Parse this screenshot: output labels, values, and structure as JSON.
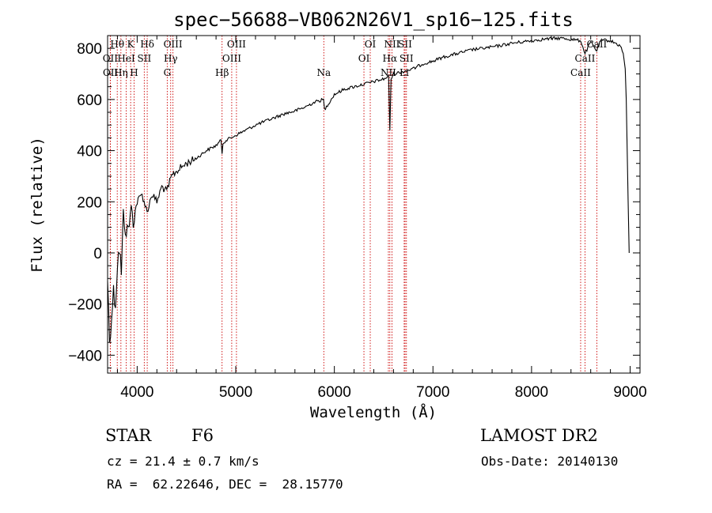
{
  "chart_data": {
    "type": "line",
    "title": "spec−56688−VB062N26V1_sp16−125.fits",
    "xlabel": "Wavelength (Å)",
    "ylabel": "Flux (relative)",
    "xlim": [
      3700,
      9100
    ],
    "ylim": [
      -470,
      850
    ],
    "xticks": [
      4000,
      5000,
      6000,
      7000,
      8000,
      9000
    ],
    "yticks": [
      -400,
      -200,
      0,
      200,
      400,
      600,
      800
    ],
    "ytick_labels": [
      "−400",
      "−200",
      "0",
      "200",
      "400",
      "600",
      "800"
    ],
    "grid": false,
    "series": [
      {
        "x": [
          3700,
          3720,
          3740,
          3760,
          3780,
          3800,
          3820,
          3840,
          3860,
          3880,
          3900,
          3920,
          3940,
          3960,
          3980,
          4000,
          4050,
          4100,
          4150,
          4200,
          4250,
          4300,
          4350,
          4400,
          4500,
          4600,
          4700,
          4800,
          4850,
          4861,
          4870,
          4900,
          5000,
          5100,
          5200,
          5300,
          5400,
          5500,
          5600,
          5700,
          5800,
          5890,
          5900,
          6000,
          6100,
          6200,
          6300,
          6400,
          6500,
          6550,
          6563,
          6575,
          6600,
          6700,
          6800,
          6900,
          7000,
          7100,
          7200,
          7300,
          7400,
          7500,
          7600,
          7700,
          7800,
          7900,
          8000,
          8100,
          8200,
          8300,
          8400,
          8500,
          8542,
          8600,
          8662,
          8700,
          8750,
          8800,
          8850,
          8900,
          8930,
          8950,
          8960,
          8970,
          8980,
          8990
        ],
        "values": [
          -100,
          -340,
          -250,
          -150,
          -200,
          -40,
          20,
          -80,
          150,
          100,
          80,
          120,
          170,
          130,
          160,
          200,
          230,
          160,
          230,
          200,
          260,
          240,
          300,
          320,
          350,
          370,
          400,
          420,
          440,
          390,
          430,
          440,
          460,
          480,
          500,
          515,
          530,
          545,
          555,
          570,
          590,
          600,
          560,
          620,
          640,
          650,
          660,
          670,
          680,
          690,
          480,
          680,
          700,
          710,
          720,
          740,
          750,
          765,
          775,
          785,
          795,
          800,
          805,
          812,
          820,
          825,
          830,
          835,
          838,
          840,
          835,
          830,
          780,
          825,
          790,
          830,
          832,
          830,
          820,
          810,
          780,
          720,
          600,
          400,
          200,
          0
        ]
      }
    ],
    "spectral_lines": [
      {
        "label": "Hθ",
        "wavelength": 3798,
        "row": 0
      },
      {
        "label": "OII",
        "wavelength": 3727,
        "row": 1
      },
      {
        "label": "OII",
        "wavelength": 3729,
        "row": 2
      },
      {
        "label": "Hη",
        "wavelength": 3835,
        "row": 2
      },
      {
        "label": "K",
        "wavelength": 3934,
        "row": 0
      },
      {
        "label": "HeI",
        "wavelength": 3889,
        "row": 1
      },
      {
        "label": "Hδ",
        "wavelength": 4102,
        "row": 0
      },
      {
        "label": "SII",
        "wavelength": 4072,
        "row": 1
      },
      {
        "label": "H",
        "wavelength": 3969,
        "row": 2
      },
      {
        "label": "OIII",
        "wavelength": 4363,
        "row": 0
      },
      {
        "label": "Hγ",
        "wavelength": 4340,
        "row": 1
      },
      {
        "label": "G",
        "wavelength": 4305,
        "row": 2
      },
      {
        "label": "Hβ",
        "wavelength": 4861,
        "row": 2
      },
      {
        "label": "OIII",
        "wavelength": 5007,
        "row": 0
      },
      {
        "label": "OIII",
        "wavelength": 4959,
        "row": 1
      },
      {
        "label": "Na",
        "wavelength": 5893,
        "row": 2
      },
      {
        "label": "OI",
        "wavelength": 6364,
        "row": 0
      },
      {
        "label": "OI",
        "wavelength": 6300,
        "row": 1
      },
      {
        "label": "NII",
        "wavelength": 6584,
        "row": 0
      },
      {
        "label": "SII",
        "wavelength": 6717,
        "row": 0
      },
      {
        "label": "Hα",
        "wavelength": 6563,
        "row": 1
      },
      {
        "label": "SII",
        "wavelength": 6731,
        "row": 1
      },
      {
        "label": "NII",
        "wavelength": 6548,
        "row": 2
      },
      {
        "label": "Li",
        "wavelength": 6708,
        "row": 2
      },
      {
        "label": "CaII",
        "wavelength": 8662,
        "row": 0
      },
      {
        "label": "CaII",
        "wavelength": 8542,
        "row": 1
      },
      {
        "label": "CaII",
        "wavelength": 8498,
        "row": 2
      }
    ]
  },
  "info": {
    "class": "STAR",
    "subclass": "F6",
    "survey": "LAMOST DR2",
    "cz": "cz = 21.4 ± 0.7 km/s",
    "obs_date": "Obs-Date: 20140130",
    "coords": "RA =  62.22646, DEC =  28.15770"
  }
}
